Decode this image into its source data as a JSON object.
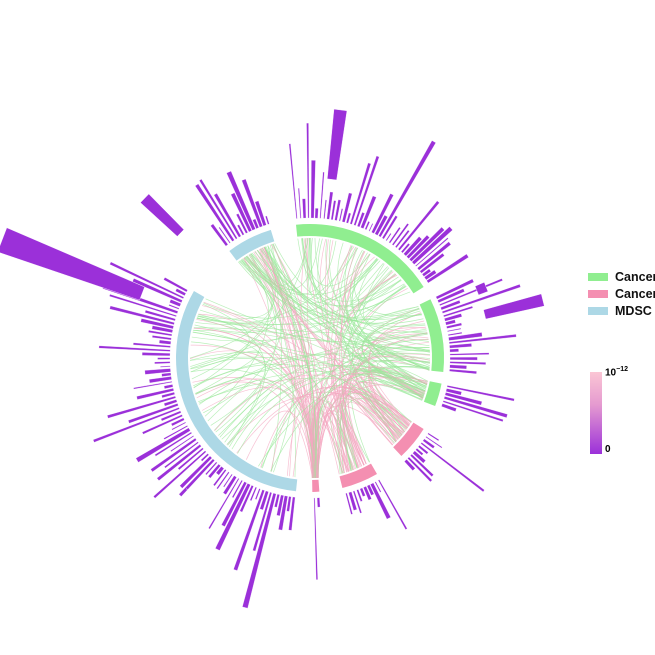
{
  "legend": {
    "items": [
      {
        "label": "Cancer",
        "color": "#90ee90"
      },
      {
        "label": "Cancer",
        "color": "#f48fb1"
      },
      {
        "label": "MDSC",
        "color": "#add8e6"
      }
    ]
  },
  "colorbar": {
    "top_base": "10",
    "top_exp": "−12",
    "bottom_label": "0",
    "colors": [
      "#fbc6d4",
      "#9b30d9"
    ]
  },
  "colors": {
    "bar": "#9b30d9",
    "chord_green": "#9be89b",
    "chord_pink": "#f4a6c0"
  }
}
